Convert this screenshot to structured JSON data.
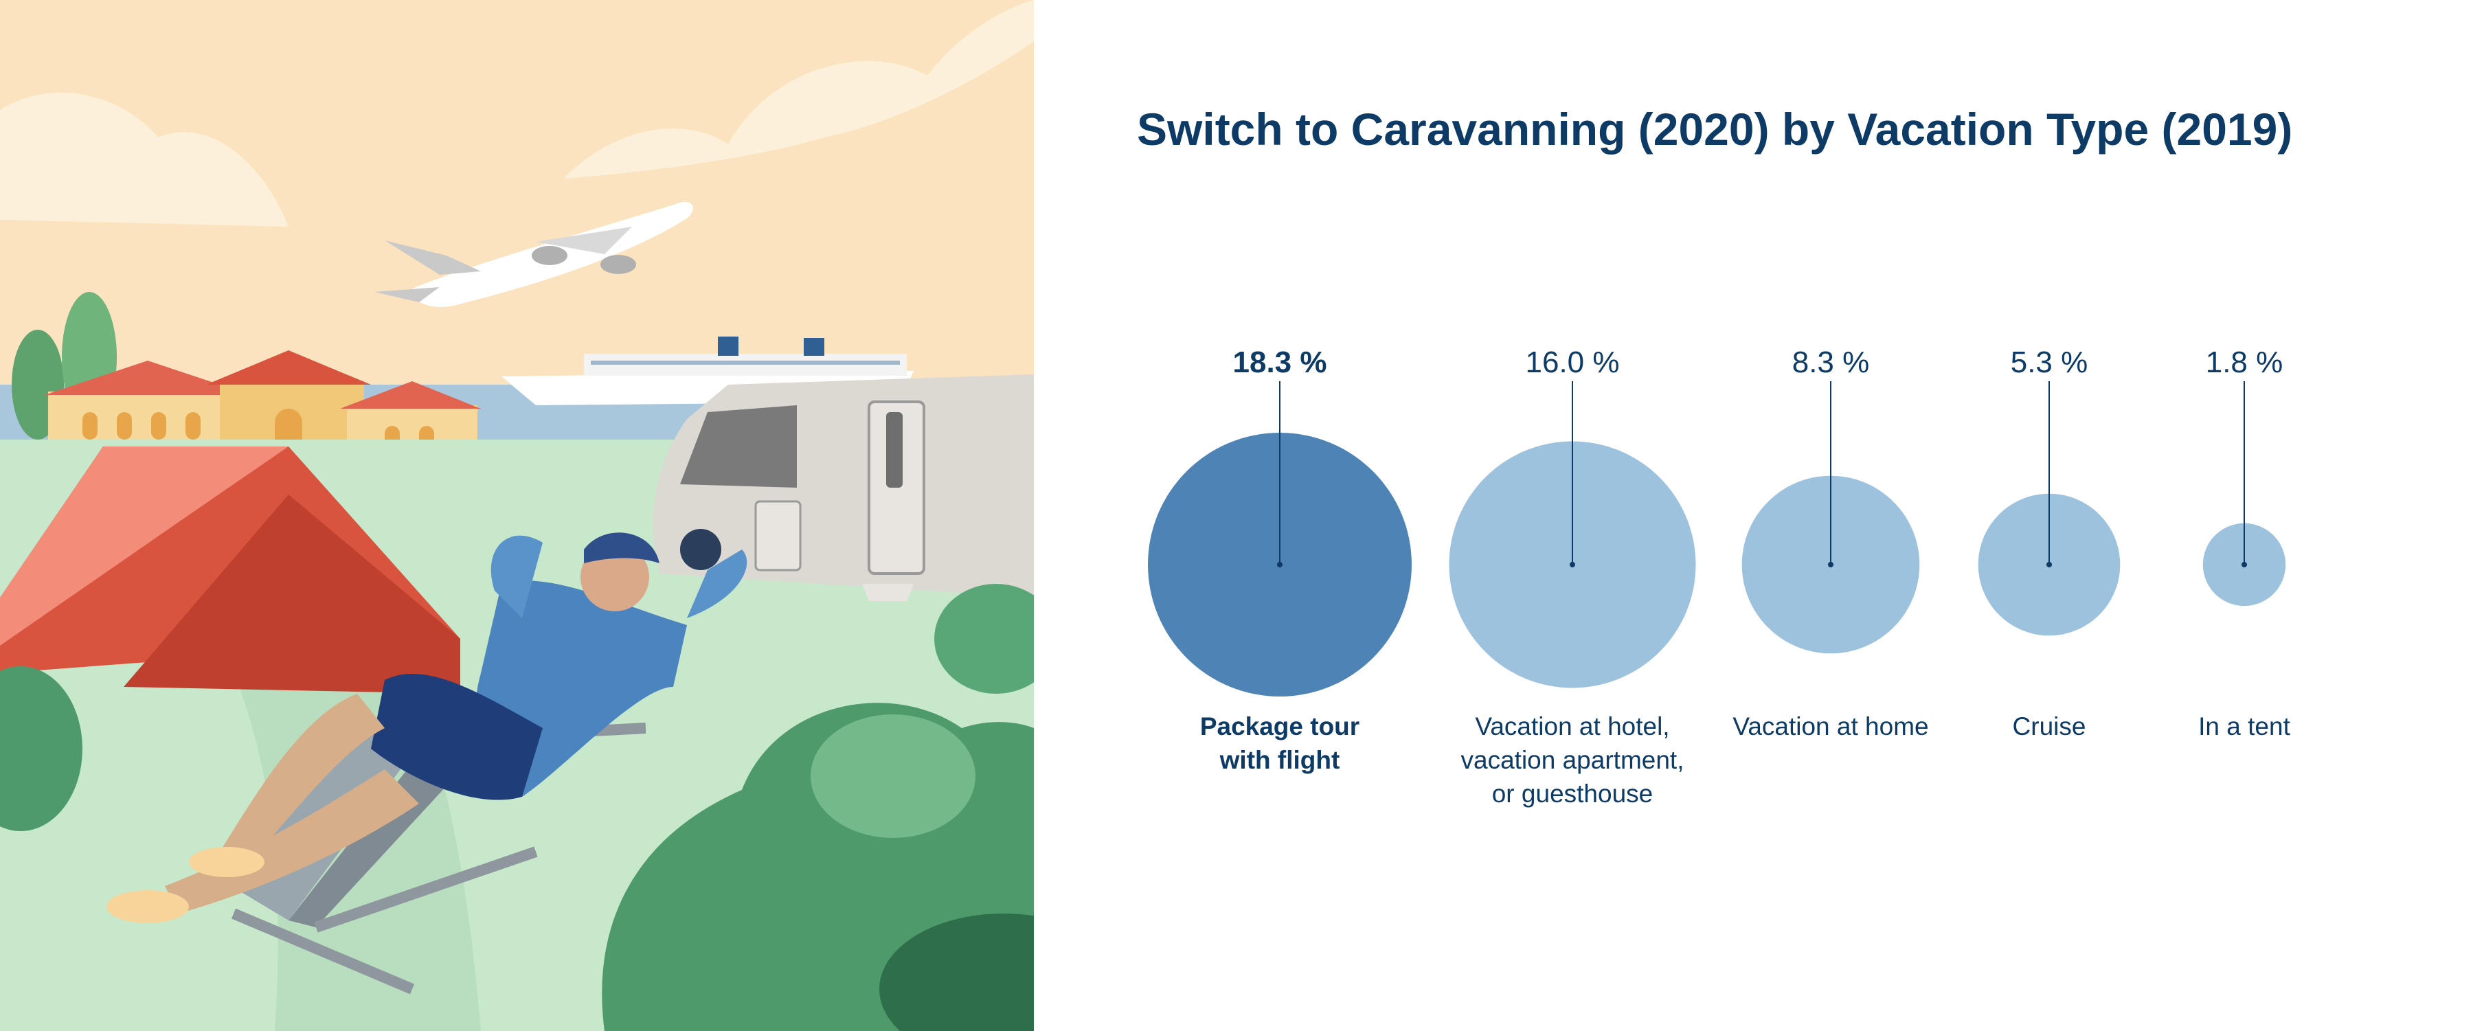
{
  "chart_data": {
    "type": "bubble",
    "title": "Switch to Caravanning (2020) by Vacation Type (2019)",
    "unit": "%",
    "categories": [
      "Package tour with flight",
      "Vacation at hotel, vacation apartment, or guesthouse",
      "Vacation at home",
      "Cruise",
      "In a tent"
    ],
    "values": [
      18.3,
      16.0,
      8.3,
      5.3,
      1.8
    ],
    "value_labels": [
      "18.3 %",
      "16.0 %",
      "8.3 %",
      "5.3 %",
      "1.8 %"
    ],
    "category_lines": [
      [
        "Package tour",
        "with flight"
      ],
      [
        "Vacation at hotel,",
        "vacation apartment,",
        "or guesthouse"
      ],
      [
        "Vacation at home"
      ],
      [
        "Cruise"
      ],
      [
        "In a tent"
      ]
    ],
    "highlight_index": 0,
    "colors": {
      "highlight": "#4d84b5",
      "default": "#9dc2de",
      "text": "#0d3b66",
      "line": "#0d3b66"
    }
  }
}
